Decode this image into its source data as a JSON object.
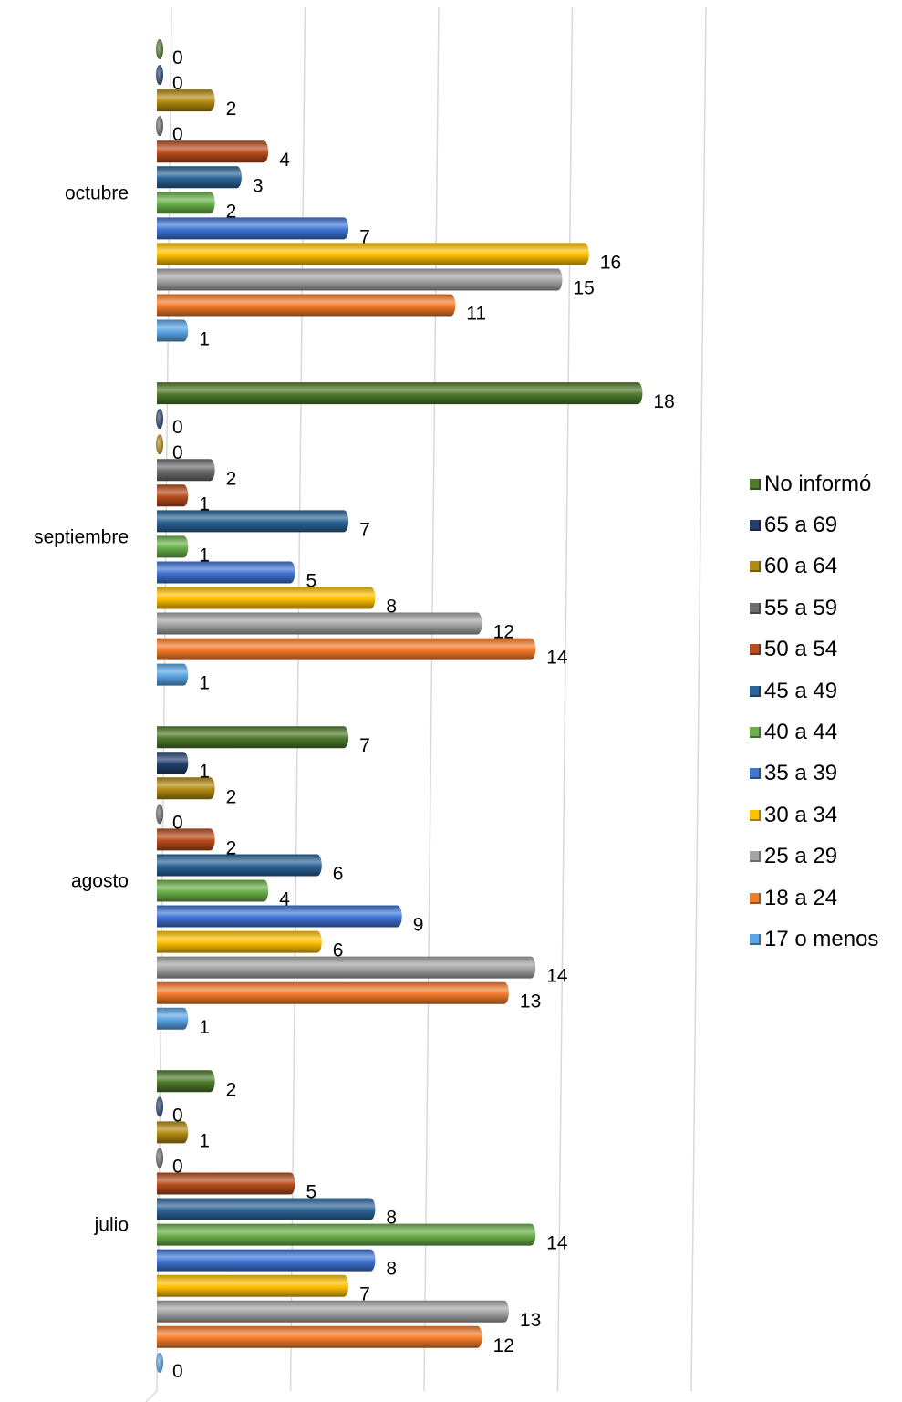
{
  "chart_data": {
    "type": "bar",
    "orientation": "horizontal",
    "categories": [
      "octubre",
      "septiembre",
      "agosto",
      "julio"
    ],
    "xlim": [
      0,
      20
    ],
    "grid": true,
    "legend_position": "right",
    "series": [
      {
        "name": "No informó",
        "color": "#4f7a2c",
        "values": [
          0,
          18,
          7,
          2
        ]
      },
      {
        "name": "65 a 69",
        "color": "#24406e",
        "values": [
          0,
          0,
          1,
          0
        ]
      },
      {
        "name": "60 a 64",
        "color": "#b38a11",
        "values": [
          2,
          0,
          2,
          1
        ]
      },
      {
        "name": "55 a 59",
        "color": "#6d6d6d",
        "values": [
          0,
          2,
          0,
          0
        ]
      },
      {
        "name": "50 a 54",
        "color": "#b84c1c",
        "values": [
          4,
          1,
          2,
          5
        ]
      },
      {
        "name": "45 a 49",
        "color": "#2b6496",
        "values": [
          3,
          7,
          6,
          8
        ]
      },
      {
        "name": "40 a 44",
        "color": "#6ab04a",
        "values": [
          2,
          1,
          4,
          14
        ]
      },
      {
        "name": "35 a 39",
        "color": "#3f74d6",
        "values": [
          7,
          5,
          9,
          8
        ]
      },
      {
        "name": "30 a 34",
        "color": "#ffc000",
        "values": [
          16,
          8,
          6,
          7
        ]
      },
      {
        "name": "25 a 29",
        "color": "#a5a5a5",
        "values": [
          15,
          12,
          14,
          13
        ]
      },
      {
        "name": "18 a 24",
        "color": "#f47b2a",
        "values": [
          11,
          14,
          13,
          12
        ]
      },
      {
        "name": "17 o menos",
        "color": "#5aa5e6",
        "values": [
          1,
          1,
          1,
          0
        ]
      }
    ]
  }
}
